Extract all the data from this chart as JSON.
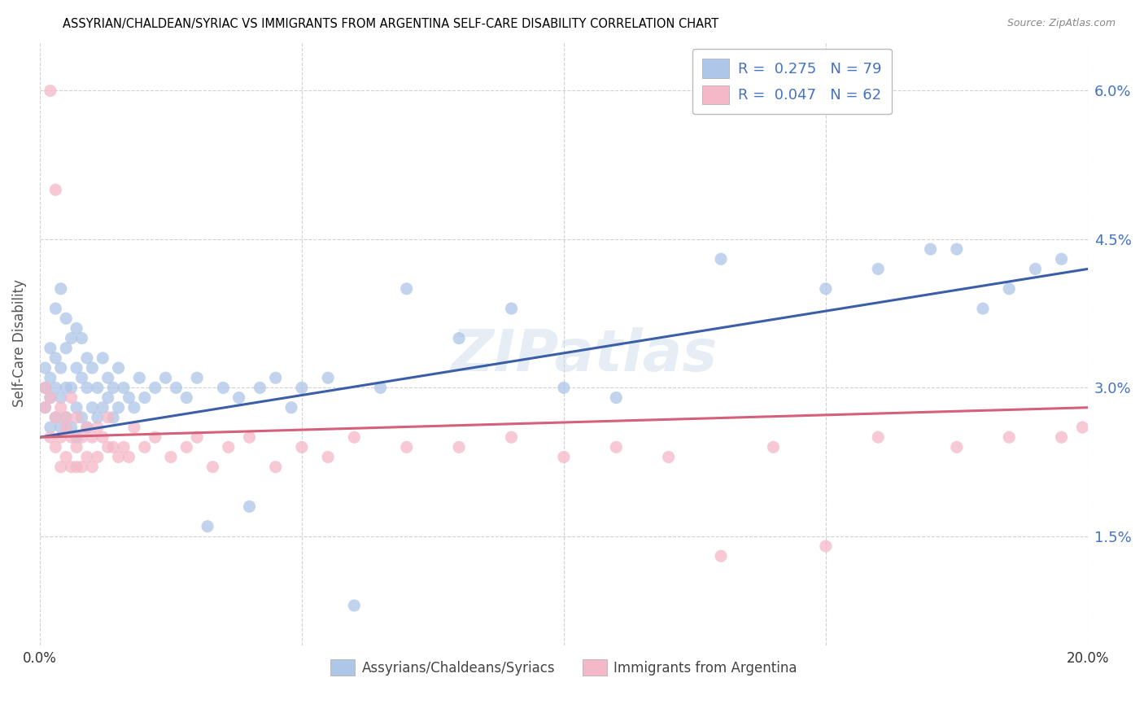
{
  "title": "ASSYRIAN/CHALDEAN/SYRIAC VS IMMIGRANTS FROM ARGENTINA SELF-CARE DISABILITY CORRELATION CHART",
  "source": "Source: ZipAtlas.com",
  "ylabel": "Self-Care Disability",
  "yticks_labels": [
    "6.0%",
    "4.5%",
    "3.0%",
    "1.5%"
  ],
  "ytick_vals": [
    0.06,
    0.045,
    0.03,
    0.015
  ],
  "xmin": 0.0,
  "xmax": 0.2,
  "ymin": 0.004,
  "ymax": 0.065,
  "watermark": "ZIPatlas",
  "legend_text_blue": "R =  0.275   N = 79",
  "legend_text_pink": "R =  0.047   N = 62",
  "legend_label1": "Assyrians/Chaldeans/Syriacs",
  "legend_label2": "Immigrants from Argentina",
  "color_blue": "#aec6e8",
  "color_pink": "#f4b8c8",
  "trendline_blue": "#3a5fa8",
  "trendline_pink": "#d4607a",
  "ytick_color": "#4472c4",
  "title_color": "#000000",
  "source_color": "#888888",
  "grid_color": "#cccccc",
  "ylabel_color": "#555555",
  "blue_x": [
    0.001,
    0.001,
    0.001,
    0.002,
    0.002,
    0.002,
    0.002,
    0.003,
    0.003,
    0.003,
    0.003,
    0.004,
    0.004,
    0.004,
    0.004,
    0.005,
    0.005,
    0.005,
    0.005,
    0.006,
    0.006,
    0.006,
    0.007,
    0.007,
    0.007,
    0.007,
    0.008,
    0.008,
    0.008,
    0.009,
    0.009,
    0.009,
    0.01,
    0.01,
    0.011,
    0.011,
    0.012,
    0.012,
    0.013,
    0.013,
    0.014,
    0.014,
    0.015,
    0.015,
    0.016,
    0.017,
    0.018,
    0.019,
    0.02,
    0.022,
    0.024,
    0.026,
    0.028,
    0.03,
    0.032,
    0.035,
    0.038,
    0.04,
    0.042,
    0.045,
    0.048,
    0.05,
    0.055,
    0.06,
    0.065,
    0.07,
    0.08,
    0.09,
    0.1,
    0.11,
    0.13,
    0.15,
    0.16,
    0.17,
    0.175,
    0.18,
    0.185,
    0.19,
    0.195
  ],
  "blue_y": [
    0.028,
    0.03,
    0.032,
    0.026,
    0.029,
    0.031,
    0.034,
    0.027,
    0.03,
    0.033,
    0.038,
    0.026,
    0.029,
    0.032,
    0.04,
    0.027,
    0.03,
    0.034,
    0.037,
    0.026,
    0.03,
    0.035,
    0.025,
    0.028,
    0.032,
    0.036,
    0.027,
    0.031,
    0.035,
    0.026,
    0.03,
    0.033,
    0.028,
    0.032,
    0.027,
    0.03,
    0.028,
    0.033,
    0.029,
    0.031,
    0.027,
    0.03,
    0.028,
    0.032,
    0.03,
    0.029,
    0.028,
    0.031,
    0.029,
    0.03,
    0.031,
    0.03,
    0.029,
    0.031,
    0.016,
    0.03,
    0.029,
    0.018,
    0.03,
    0.031,
    0.028,
    0.03,
    0.031,
    0.008,
    0.03,
    0.04,
    0.035,
    0.038,
    0.03,
    0.029,
    0.043,
    0.04,
    0.042,
    0.044,
    0.044,
    0.038,
    0.04,
    0.042,
    0.043
  ],
  "pink_x": [
    0.001,
    0.001,
    0.002,
    0.002,
    0.002,
    0.003,
    0.003,
    0.003,
    0.004,
    0.004,
    0.004,
    0.005,
    0.005,
    0.005,
    0.006,
    0.006,
    0.006,
    0.007,
    0.007,
    0.007,
    0.008,
    0.008,
    0.009,
    0.009,
    0.01,
    0.01,
    0.011,
    0.011,
    0.012,
    0.013,
    0.013,
    0.014,
    0.015,
    0.016,
    0.017,
    0.018,
    0.02,
    0.022,
    0.025,
    0.028,
    0.03,
    0.033,
    0.036,
    0.04,
    0.045,
    0.05,
    0.055,
    0.06,
    0.07,
    0.08,
    0.09,
    0.1,
    0.11,
    0.12,
    0.13,
    0.14,
    0.15,
    0.16,
    0.175,
    0.185,
    0.195,
    0.199
  ],
  "pink_y": [
    0.028,
    0.03,
    0.025,
    0.029,
    0.06,
    0.027,
    0.05,
    0.024,
    0.028,
    0.025,
    0.022,
    0.026,
    0.023,
    0.027,
    0.025,
    0.022,
    0.029,
    0.024,
    0.027,
    0.022,
    0.025,
    0.022,
    0.026,
    0.023,
    0.025,
    0.022,
    0.026,
    0.023,
    0.025,
    0.024,
    0.027,
    0.024,
    0.023,
    0.024,
    0.023,
    0.026,
    0.024,
    0.025,
    0.023,
    0.024,
    0.025,
    0.022,
    0.024,
    0.025,
    0.022,
    0.024,
    0.023,
    0.025,
    0.024,
    0.024,
    0.025,
    0.023,
    0.024,
    0.023,
    0.013,
    0.024,
    0.014,
    0.025,
    0.024,
    0.025,
    0.025,
    0.026
  ]
}
